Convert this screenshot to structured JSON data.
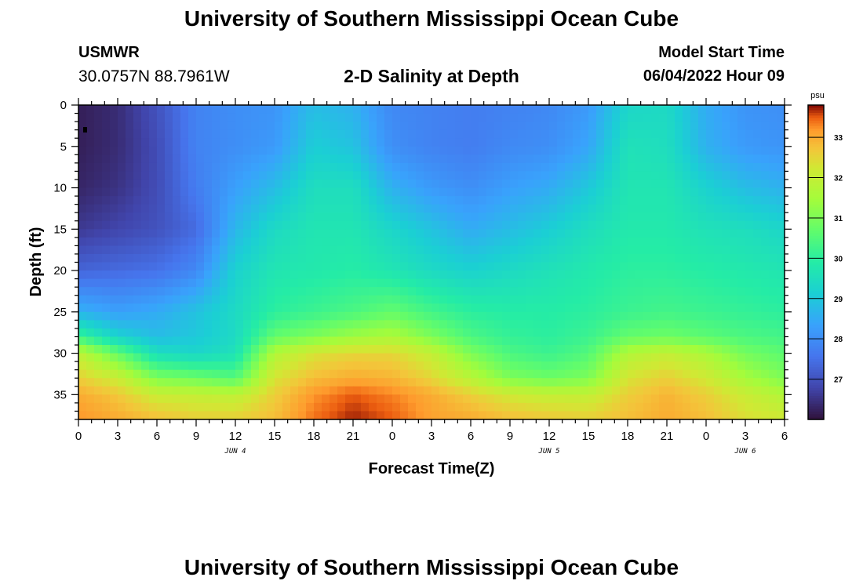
{
  "title_top": "University of Southern Mississippi Ocean Cube",
  "title_bottom": "University of Southern Mississippi Ocean Cube",
  "station": "USMWR",
  "coordinates": "30.0757N  88.7961W",
  "subtitle": "2-D Salinity at Depth",
  "model_start_label": "Model Start Time",
  "model_start_value": "06/04/2022 Hour 09",
  "chart_data": {
    "type": "heatmap",
    "title": "2-D Salinity at Depth",
    "xlabel": "Forecast Time(Z)",
    "ylabel": "Depth (ft)",
    "x_tick_labels": [
      "0",
      "3",
      "6",
      "9",
      "12",
      "15",
      "18",
      "21",
      "0",
      "3",
      "6",
      "9",
      "12",
      "15",
      "18",
      "21",
      "0",
      "3",
      "6"
    ],
    "day_labels": [
      {
        "label": "JUN 4",
        "hour": 12
      },
      {
        "label": "JUN 5",
        "hour": 36
      },
      {
        "label": "JUN 6",
        "hour": 51
      }
    ],
    "x_unit": "forecast hours (Z)",
    "xlim": [
      0,
      54
    ],
    "y_ticks": [
      0,
      5,
      10,
      15,
      20,
      25,
      30,
      35
    ],
    "ylim": [
      0,
      38
    ],
    "y_inverted": true,
    "colorbar": {
      "unit": "psu",
      "ticks": [
        27,
        28,
        29,
        30,
        31,
        32,
        33
      ],
      "range": [
        26.0,
        33.8
      ],
      "colormap": "turbo"
    },
    "grid": {
      "hours": [
        0,
        3,
        6,
        9,
        12,
        15,
        18,
        21,
        24,
        27,
        30,
        33,
        36,
        39,
        42,
        45,
        48,
        51,
        54
      ],
      "depths": [
        0,
        5,
        10,
        15,
        20,
        25,
        28,
        30,
        33,
        35,
        38
      ],
      "values": [
        [
          26.2,
          26.4,
          27.0,
          27.8,
          28.0,
          28.1,
          28.8,
          28.6,
          27.9,
          27.8,
          27.7,
          27.8,
          27.9,
          28.2,
          29.3,
          29.4,
          28.5,
          28.1,
          28.0
        ],
        [
          26.2,
          26.4,
          26.9,
          27.8,
          28.0,
          28.2,
          29.1,
          28.9,
          28.0,
          27.8,
          27.7,
          27.9,
          28.0,
          28.4,
          29.6,
          29.5,
          28.6,
          28.2,
          28.1
        ],
        [
          26.3,
          26.5,
          26.9,
          27.7,
          28.3,
          28.8,
          29.5,
          29.5,
          28.6,
          28.2,
          28.0,
          28.3,
          28.5,
          29.0,
          29.7,
          29.7,
          29.2,
          28.8,
          28.6
        ],
        [
          26.6,
          26.8,
          27.0,
          27.4,
          28.7,
          29.4,
          29.7,
          29.7,
          29.3,
          28.9,
          28.5,
          28.8,
          29.1,
          29.5,
          29.8,
          29.8,
          29.6,
          29.5,
          29.3
        ],
        [
          27.3,
          27.4,
          27.5,
          27.9,
          29.2,
          29.7,
          29.8,
          29.9,
          29.7,
          29.4,
          29.2,
          29.4,
          29.6,
          29.8,
          30.0,
          30.0,
          29.9,
          29.8,
          29.7
        ],
        [
          28.6,
          28.3,
          28.5,
          28.9,
          29.4,
          30.0,
          30.2,
          30.4,
          30.7,
          30.3,
          30.0,
          29.9,
          29.9,
          30.0,
          30.2,
          30.3,
          30.2,
          30.1,
          30.0
        ],
        [
          30.2,
          29.2,
          28.8,
          29.0,
          29.4,
          30.7,
          31.0,
          31.4,
          31.6,
          31.0,
          30.4,
          30.1,
          30.0,
          30.2,
          30.7,
          30.8,
          30.6,
          30.4,
          30.3
        ],
        [
          31.9,
          30.7,
          29.5,
          29.3,
          29.6,
          31.7,
          32.3,
          32.5,
          32.5,
          32.0,
          31.0,
          30.4,
          30.2,
          30.5,
          31.7,
          32.0,
          31.6,
          30.9,
          30.6
        ],
        [
          32.6,
          32.1,
          31.0,
          30.8,
          30.5,
          32.3,
          32.8,
          33.0,
          32.9,
          32.5,
          31.8,
          31.0,
          30.8,
          31.0,
          32.3,
          32.6,
          32.2,
          31.5,
          31.0
        ],
        [
          33.0,
          32.7,
          32.1,
          32.0,
          31.9,
          32.6,
          33.2,
          33.5,
          33.3,
          33.0,
          32.6,
          32.2,
          32.0,
          32.0,
          32.6,
          32.9,
          32.6,
          32.1,
          31.7
        ],
        [
          33.2,
          33.0,
          32.8,
          32.6,
          32.6,
          32.8,
          33.4,
          33.7,
          33.5,
          33.1,
          33.0,
          32.8,
          32.7,
          32.6,
          32.8,
          33.0,
          32.8,
          32.4,
          32.2
        ]
      ]
    }
  }
}
